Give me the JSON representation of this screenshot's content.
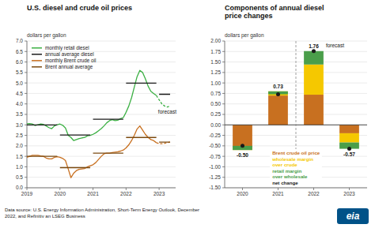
{
  "chart_data": [
    {
      "type": "line",
      "title": "U.S. diesel and crude oil prices",
      "y_label": "dollars per gallon",
      "xlim": [
        2019.0,
        2023.5
      ],
      "xticks": [
        2019,
        2020,
        2021,
        2022,
        2023
      ],
      "ylim": [
        0.0,
        7.0
      ],
      "yticks": [
        {
          "value": 0,
          "label": "0.0"
        },
        0.5,
        {
          "value": 1,
          "label": "1.0"
        },
        1.5,
        {
          "value": 2,
          "label": "2.0"
        },
        2.5,
        {
          "value": 3,
          "label": "3.0"
        },
        3.5,
        {
          "value": 4,
          "label": "4.0"
        },
        4.5,
        {
          "value": 5,
          "label": "5.0"
        },
        5.5,
        {
          "value": 6,
          "label": "6.0"
        },
        6.5,
        {
          "value": 7,
          "label": "7.0"
        }
      ],
      "grid": true,
      "legend": "upper left",
      "series": [
        {
          "name": "monthly retail diesel",
          "color": "#3cb044",
          "line_style": "solid",
          "x": [
            2019.0,
            2019.083,
            2019.167,
            2019.25,
            2019.333,
            2019.417,
            2019.5,
            2019.583,
            2019.667,
            2019.75,
            2019.833,
            2019.917,
            2020.0,
            2020.083,
            2020.167,
            2020.25,
            2020.333,
            2020.417,
            2020.5,
            2020.583,
            2020.667,
            2020.75,
            2020.833,
            2020.917,
            2021.0,
            2021.083,
            2021.167,
            2021.25,
            2021.333,
            2021.417,
            2021.5,
            2021.583,
            2021.667,
            2021.75,
            2021.833,
            2021.917,
            2022.0,
            2022.083,
            2022.167,
            2022.25,
            2022.333,
            2022.417,
            2022.5,
            2022.583,
            2022.667,
            2022.75,
            2022.833,
            2022.917
          ],
          "values": [
            3.05,
            3.06,
            3.04,
            2.97,
            3.01,
            3.04,
            3.02,
            2.95,
            2.87,
            2.82,
            2.95,
            3.01,
            3.04,
            2.98,
            2.85,
            2.5,
            2.4,
            2.25,
            2.3,
            2.35,
            2.38,
            2.4,
            2.48,
            2.5,
            2.55,
            2.62,
            2.72,
            2.82,
            2.95,
            3.1,
            3.2,
            3.25,
            3.2,
            3.22,
            3.3,
            3.35,
            3.6,
            3.9,
            4.3,
            4.8,
            5.3,
            5.6,
            5.5,
            5.2,
            4.85,
            4.6,
            4.5,
            4.4
          ]
        },
        {
          "color": "#3cb044",
          "line_style": "dashed",
          "x": [
            2022.917,
            2023.0,
            2023.083,
            2023.167,
            2023.25,
            2023.333
          ],
          "values": [
            4.4,
            4.2,
            4.0,
            3.9,
            3.85,
            3.9
          ]
        },
        {
          "name": "annual average diesel",
          "color": "#1a1a1a",
          "line_style": "solid",
          "x": [
            2019.0,
            2019.917,
            null,
            2020.0,
            2020.917,
            null,
            2021.0,
            2021.917,
            null,
            2022.0,
            2022.917,
            null,
            2023.0,
            2023.333
          ],
          "values": [
            3.0,
            3.0,
            null,
            2.52,
            2.52,
            null,
            3.27,
            3.27,
            null,
            4.99,
            4.99,
            null,
            4.46,
            4.46
          ]
        },
        {
          "name": "monthly Brent crude oil",
          "color": "#c87020",
          "line_style": "solid",
          "x": [
            2019.0,
            2019.083,
            2019.167,
            2019.25,
            2019.333,
            2019.417,
            2019.5,
            2019.583,
            2019.667,
            2019.75,
            2019.833,
            2019.917,
            2020.0,
            2020.083,
            2020.167,
            2020.25,
            2020.333,
            2020.417,
            2020.5,
            2020.583,
            2020.667,
            2020.75,
            2020.833,
            2020.917,
            2021.0,
            2021.083,
            2021.167,
            2021.25,
            2021.333,
            2021.417,
            2021.5,
            2021.583,
            2021.667,
            2021.75,
            2021.833,
            2021.917,
            2022.0,
            2022.083,
            2022.167,
            2022.25,
            2022.333,
            2022.417,
            2022.5,
            2022.583,
            2022.667,
            2022.75,
            2022.833,
            2022.917
          ],
          "values": [
            1.45,
            1.5,
            1.55,
            1.55,
            1.55,
            1.52,
            1.5,
            1.42,
            1.38,
            1.38,
            1.45,
            1.48,
            1.45,
            1.4,
            1.3,
            0.9,
            0.48,
            0.7,
            0.82,
            0.88,
            0.9,
            0.92,
            1.0,
            1.05,
            1.1,
            1.2,
            1.35,
            1.5,
            1.62,
            1.65,
            1.65,
            1.68,
            1.7,
            1.72,
            1.75,
            1.8,
            1.9,
            2.05,
            2.25,
            2.5,
            2.8,
            2.95,
            2.75,
            2.55,
            2.4,
            2.3,
            2.25,
            2.15
          ]
        },
        {
          "color": "#c87020",
          "line_style": "dashed",
          "x": [
            2022.917,
            2023.0,
            2023.083,
            2023.167,
            2023.25,
            2023.333
          ],
          "values": [
            2.15,
            2.1,
            2.1,
            2.12,
            2.15,
            2.18
          ]
        },
        {
          "name": "Brent annual average",
          "color": "#7b4a10",
          "line_style": "solid",
          "x": [
            2019.0,
            2019.917,
            null,
            2020.0,
            2020.917,
            null,
            2021.0,
            2021.917,
            null,
            2022.0,
            2022.917,
            null,
            2023.0,
            2023.333
          ],
          "values": [
            1.5,
            1.5,
            null,
            0.96,
            0.96,
            null,
            1.65,
            1.65,
            null,
            2.4,
            2.4,
            null,
            2.18,
            2.18
          ]
        }
      ],
      "annotations": [
        {
          "text": "forecast",
          "x": 2022.97,
          "y": 3.55
        }
      ]
    },
    {
      "type": "bar",
      "stacked": true,
      "title": "Components of annual diesel\nprice changes",
      "y_label": "dollars per gallon",
      "categories": [
        "2020",
        "2021",
        "2022",
        "2023"
      ],
      "ylim": [
        -1.5,
        2.0
      ],
      "yticks": [
        {
          "value": -1.5,
          "label": "-1.50"
        },
        -1.25,
        {
          "value": -1,
          "label": "-1.00"
        },
        -0.75,
        {
          "value": -0.5,
          "label": "-0.50"
        },
        -0.25,
        {
          "value": 0,
          "label": "0.00"
        },
        0.25,
        {
          "value": 0.5,
          "label": "0.50"
        },
        0.75,
        {
          "value": 1,
          "label": "1.00"
        },
        1.25,
        {
          "value": 1.5,
          "label": "1.50"
        },
        1.75,
        {
          "value": 2,
          "label": "2.00"
        }
      ],
      "grid": true,
      "legend": "lower center",
      "series": [
        {
          "name": "Brent crude oil price",
          "color": "#c87020",
          "values": [
            -0.55,
            0.7,
            0.72,
            -0.2
          ]
        },
        {
          "name": "wholesale margin\nover crude",
          "color": "#f5c800",
          "values": [
            -0.05,
            0.1,
            0.72,
            -0.22
          ]
        },
        {
          "name": "retail margin\nover wholesale",
          "color": "#4a9e4a",
          "values": [
            0.1,
            -0.07,
            0.32,
            -0.15
          ]
        },
        {
          "name": "net change",
          "type": "scatter",
          "marker": "circle",
          "color": "#1a1a1a",
          "values": [
            -0.5,
            0.73,
            1.76,
            -0.57
          ],
          "value_labels": [
            "-0.50",
            "0.73",
            "1.76",
            "-0.57"
          ],
          "data_labels": true
        }
      ],
      "annotations": [
        {
          "text": "forecast",
          "x": "2022",
          "y": 1.88
        }
      ]
    }
  ],
  "footnote": "Data source: U.S. Energy Information Administration, Short-Term Energy Outlook, December\n2022, and Refinitiv an LSEG Business",
  "logo": "eia"
}
